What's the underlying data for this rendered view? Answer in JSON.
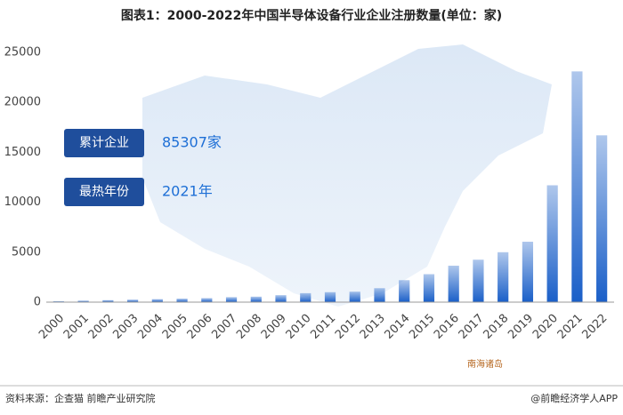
{
  "chart_data": {
    "type": "bar",
    "title": "图表1：2000-2022年中国半导体设备行业企业注册数量(单位：家)",
    "categories": [
      "2000",
      "2001",
      "2002",
      "2003",
      "2004",
      "2005",
      "2006",
      "2007",
      "2008",
      "2009",
      "2010",
      "2011",
      "2012",
      "2013",
      "2014",
      "2015",
      "2016",
      "2017",
      "2018",
      "2019",
      "2020",
      "2021",
      "2022"
    ],
    "values": [
      100,
      150,
      200,
      250,
      300,
      350,
      400,
      500,
      550,
      700,
      900,
      1000,
      1050,
      1400,
      2200,
      2800,
      3650,
      4250,
      5000,
      6050,
      11700,
      23100,
      16700
    ],
    "color": "#1a5fc8",
    "ylim": [
      0,
      25000
    ],
    "yticks": [
      0,
      5000,
      10000,
      15000,
      20000,
      25000
    ],
    "grid": false,
    "annotations": [
      {
        "label": "累计企业",
        "value": "85307家"
      },
      {
        "label": "最热年份",
        "value": "2021年"
      }
    ],
    "map_label": "南海诸岛",
    "source": "资料来源：企查猫 前瞻产业研究院",
    "credit": "@前瞻经济学人APP"
  }
}
